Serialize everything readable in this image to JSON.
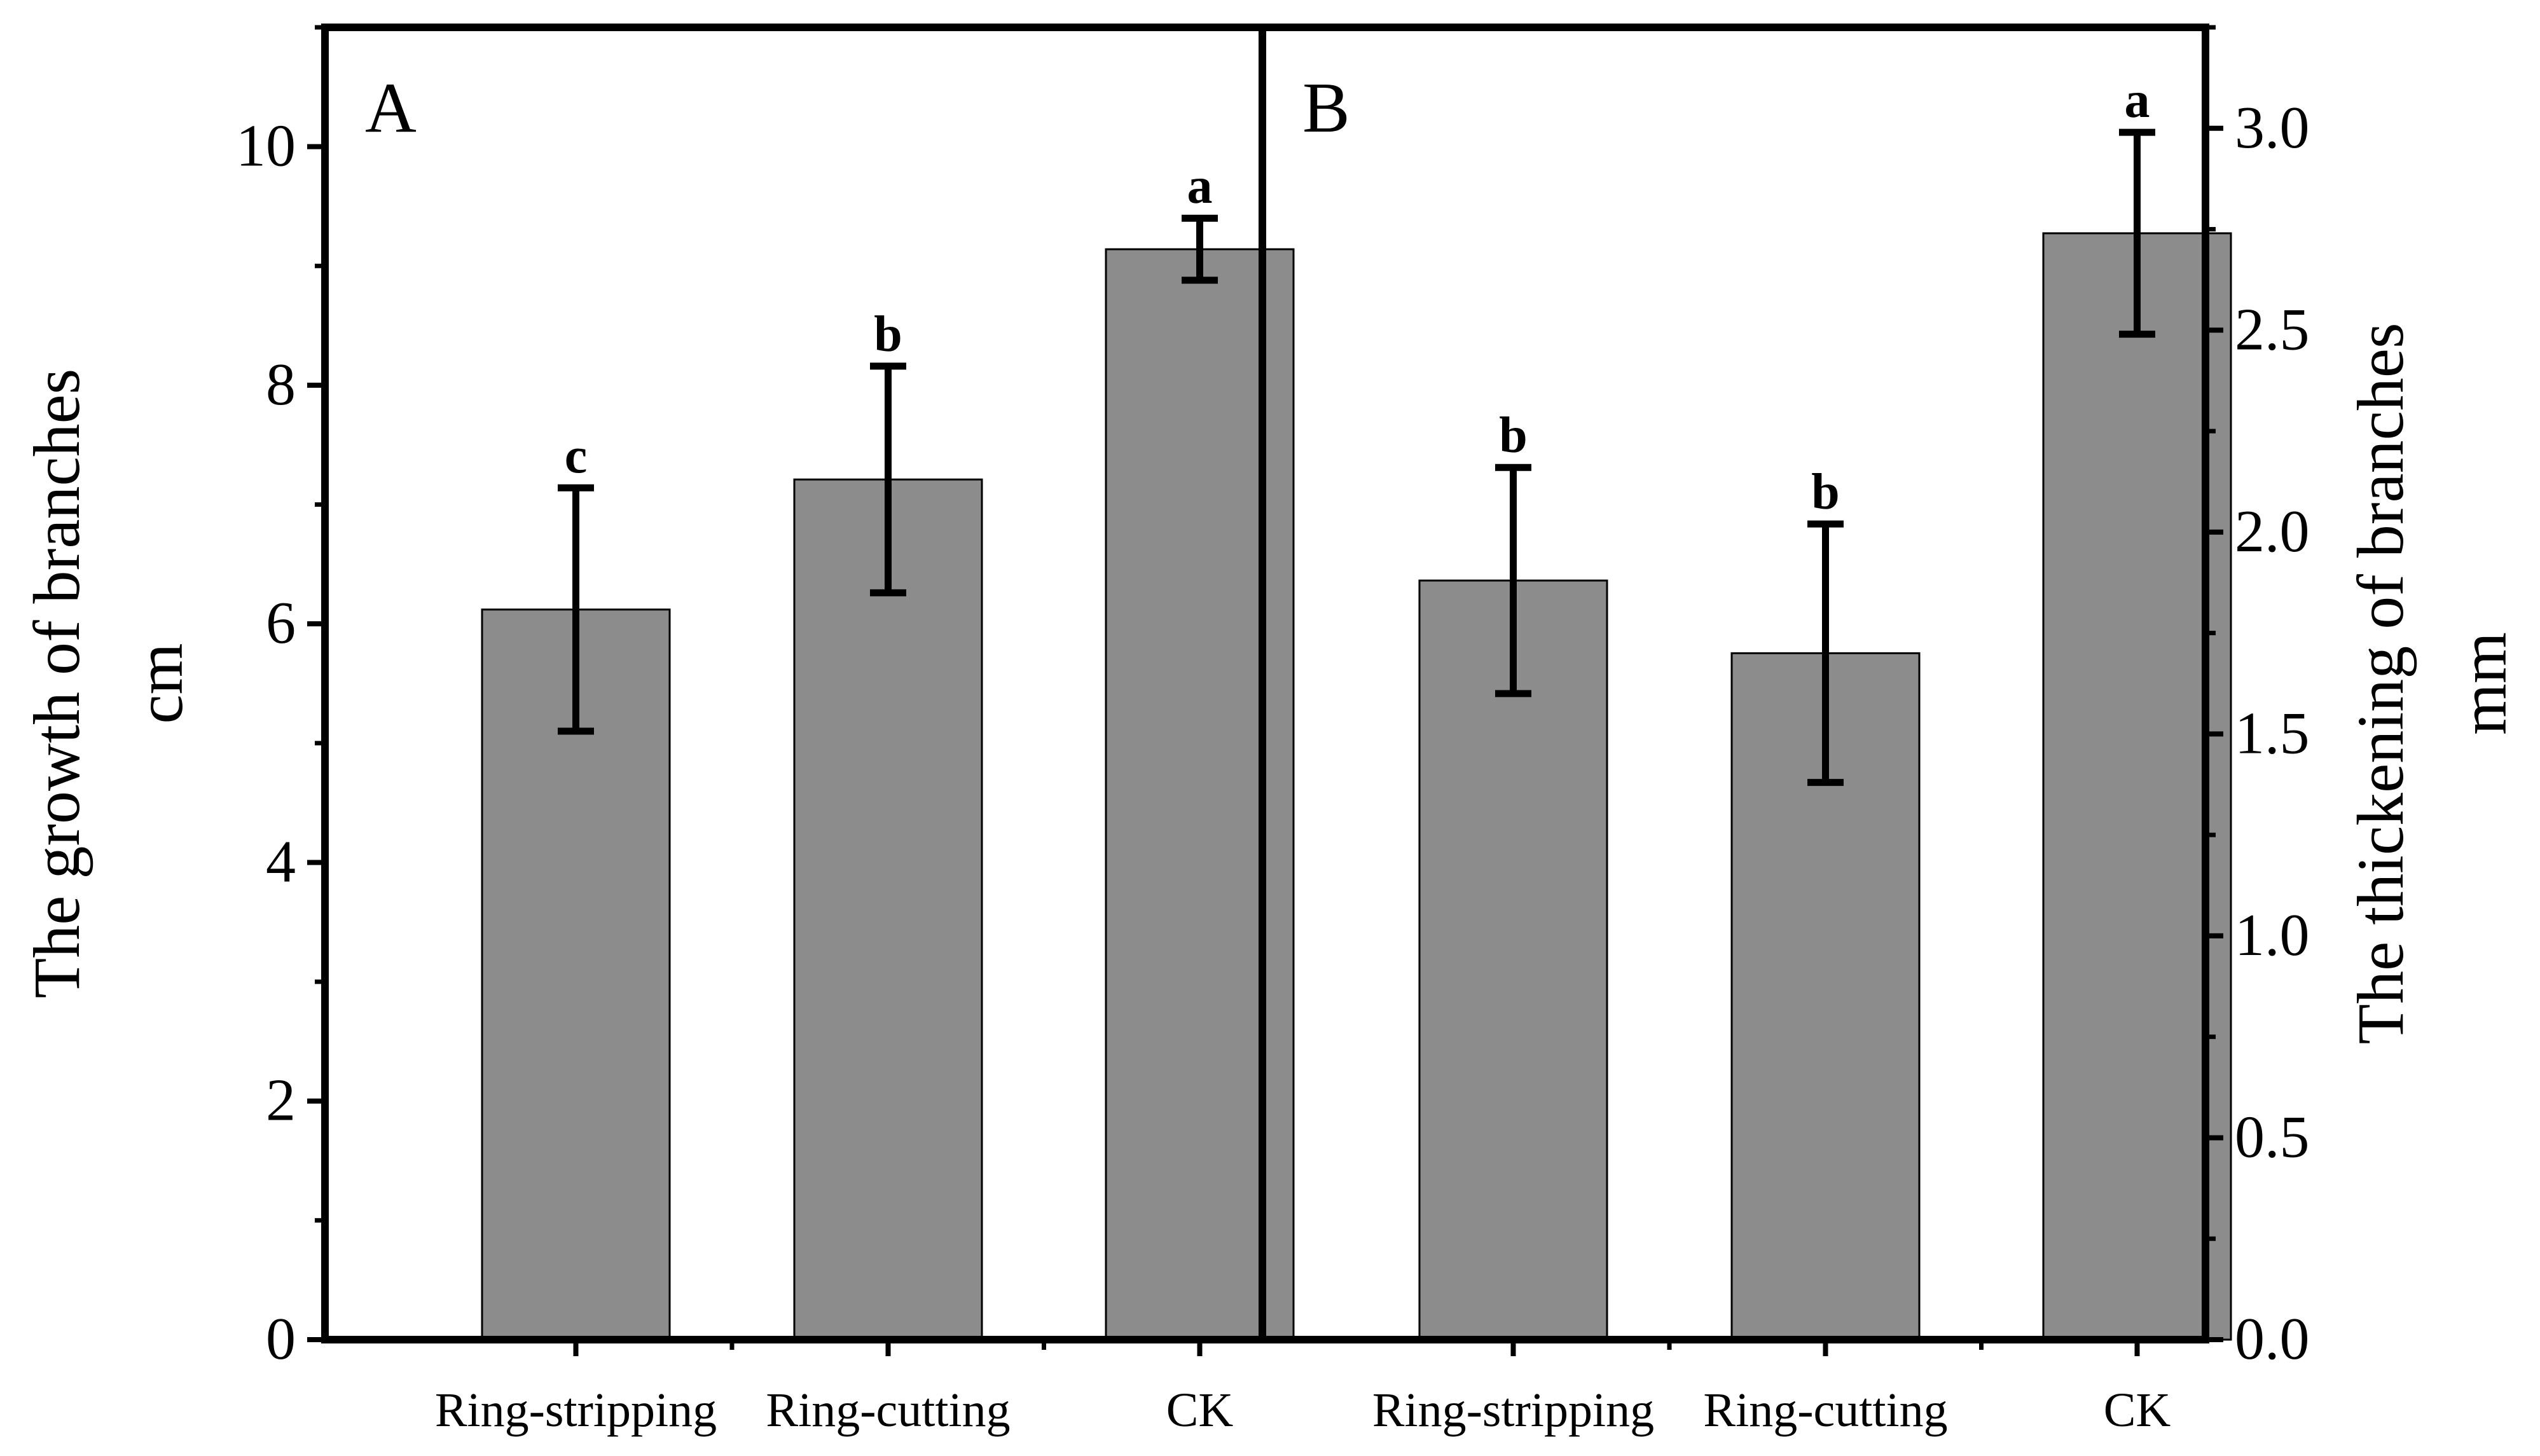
{
  "chart_data": [
    {
      "panel_label": "A",
      "type": "bar",
      "categories": [
        "Ring-stripping",
        "Ring-cutting",
        "CK"
      ],
      "values": [
        6.12,
        7.21,
        9.14
      ],
      "errors": [
        1.02,
        0.95,
        0.26
      ],
      "significance": [
        "c",
        "b",
        "a"
      ],
      "ylabel": "The growth of branches\ncm",
      "ylim": [
        0,
        11
      ],
      "yticks": [
        0,
        2,
        4,
        6,
        8,
        10
      ],
      "y_minor_step": 1
    },
    {
      "panel_label": "B",
      "type": "bar",
      "categories": [
        "Ring-stripping",
        "Ring-cutting",
        "CK"
      ],
      "values": [
        1.88,
        1.7,
        2.74
      ],
      "errors": [
        0.28,
        0.32,
        0.25
      ],
      "significance": [
        "b",
        "b",
        "a"
      ],
      "ylabel": "The thickening of branches\nmm",
      "ylim": [
        0,
        3.25
      ],
      "yticks": [
        0.0,
        0.5,
        1.0,
        1.5,
        2.0,
        2.5,
        3.0
      ],
      "y_minor_step": 0.25
    }
  ],
  "style": {
    "bar_color": "#8c8c8c",
    "axis_color": "#000000"
  }
}
